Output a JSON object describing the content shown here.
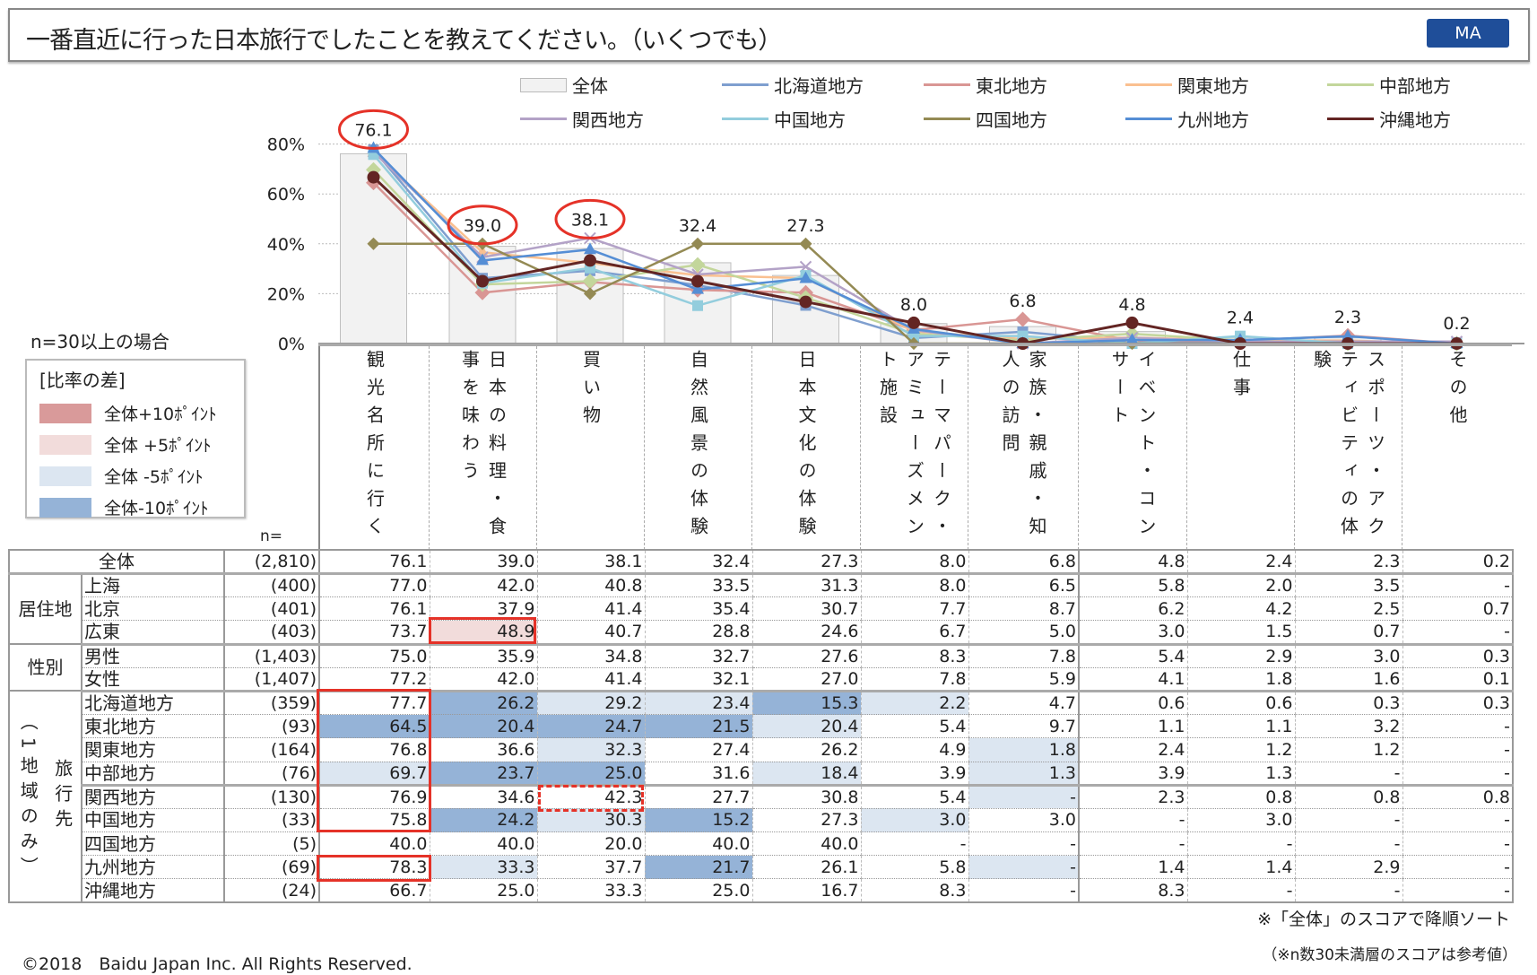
{
  "header": {
    "title": "一番直近に行った日本旅行でしたことを教えてください。（いくつでも）",
    "badge": "MA"
  },
  "condition": "n=30以上の場合",
  "diff_legend": {
    "title": "[比率の差]",
    "items": [
      {
        "label": "全体+10ﾎﾟｲﾝﾄ",
        "color": "#d99a9a"
      },
      {
        "label": "全体 +5ﾎﾟｲﾝﾄ",
        "color": "#f2dcdb"
      },
      {
        "label": "全体 -5ﾎﾟｲﾝﾄ",
        "color": "#dce6f1"
      },
      {
        "label": "全体-10ﾎﾟｲﾝﾄ",
        "color": "#95b3d7"
      }
    ]
  },
  "n_label": "n=",
  "chart_data": {
    "type": "bar+line",
    "categories": [
      "観光名所に行く",
      "日本の料理・食事を味わう",
      "買い物",
      "自然風景の体験",
      "日本文化の体験",
      "テーマパーク・アミューズメント施設",
      "家族・親戚・知人の訪問",
      "イベント・コンサート",
      "仕事",
      "スポーツ・アクティビティの体験",
      "その他"
    ],
    "yticks": [
      "0%",
      "20%",
      "40%",
      "60%",
      "80%"
    ],
    "ylim": [
      0,
      80
    ],
    "bar_series": {
      "name": "全体",
      "color": "#f2f2f2",
      "values": [
        76.1,
        39.0,
        38.1,
        32.4,
        27.3,
        8.0,
        6.8,
        4.8,
        2.4,
        2.3,
        0.2
      ],
      "labels": [
        "76.1",
        "39.0",
        "38.1",
        "32.4",
        "27.3",
        "8.0",
        "6.8",
        "4.8",
        "2.4",
        "2.3",
        "0.2"
      ]
    },
    "highlighted": [
      "76.1",
      "39.0",
      "38.1"
    ],
    "series": [
      {
        "name": "北海道地方",
        "color": "#7f9fcf",
        "marker": "square",
        "values": [
          77.7,
          26.2,
          29.2,
          23.4,
          15.3,
          2.2,
          4.7,
          0.6,
          0.6,
          0.3,
          0.3
        ]
      },
      {
        "name": "東北地方",
        "color": "#d99694",
        "marker": "dot",
        "values": [
          64.5,
          20.4,
          24.7,
          21.5,
          20.4,
          5.4,
          9.7,
          1.1,
          1.1,
          3.2,
          0
        ]
      },
      {
        "name": "関東地方",
        "color": "#fac090",
        "marker": "triangle",
        "values": [
          76.8,
          36.6,
          32.3,
          27.4,
          26.2,
          4.9,
          1.8,
          2.4,
          1.2,
          1.2,
          0
        ]
      },
      {
        "name": "中部地方",
        "color": "#c3d69b",
        "marker": "dot",
        "values": [
          69.7,
          23.7,
          25.0,
          31.6,
          18.4,
          3.9,
          1.3,
          3.9,
          1.3,
          0,
          0
        ]
      },
      {
        "name": "関西地方",
        "color": "#b3a2c7",
        "marker": "x",
        "values": [
          76.9,
          34.6,
          42.3,
          27.7,
          30.8,
          5.4,
          0,
          2.3,
          0.8,
          0.8,
          0.8
        ]
      },
      {
        "name": "中国地方",
        "color": "#93cddd",
        "marker": "square",
        "values": [
          75.8,
          24.2,
          30.3,
          15.2,
          27.3,
          3.0,
          3.0,
          0,
          3.0,
          0,
          0
        ]
      },
      {
        "name": "四国地方",
        "color": "#948a54",
        "marker": "diamond",
        "values": [
          40.0,
          40.0,
          20.0,
          40.0,
          40.0,
          0,
          0,
          0,
          0,
          0,
          0
        ]
      },
      {
        "name": "九州地方",
        "color": "#558ed5",
        "marker": "triangle",
        "values": [
          78.3,
          33.3,
          37.7,
          21.7,
          26.1,
          5.8,
          0,
          1.4,
          1.4,
          2.9,
          0
        ]
      },
      {
        "name": "沖縄地方",
        "color": "#632523",
        "marker": "circle",
        "values": [
          66.7,
          25.0,
          33.3,
          25.0,
          16.7,
          8.3,
          0,
          8.3,
          0,
          0,
          0
        ]
      }
    ]
  },
  "table": {
    "groups": {
      "residence": "居住地",
      "gender": "性別",
      "dest_a": "旅行先",
      "dest_b": "（1地域のみ）"
    },
    "rows": [
      {
        "name": "全体",
        "n": "(2,810)",
        "v": [
          "76.1",
          "39.0",
          "38.1",
          "32.4",
          "27.3",
          "8.0",
          "6.8",
          "4.8",
          "2.4",
          "2.3",
          "0.2"
        ],
        "s": [
          0,
          0,
          0,
          0,
          0,
          0,
          0,
          0,
          0,
          0,
          0
        ]
      },
      {
        "name": "上海",
        "n": "(400)",
        "v": [
          "77.0",
          "42.0",
          "40.8",
          "33.5",
          "31.3",
          "8.0",
          "6.5",
          "5.8",
          "2.0",
          "3.5",
          "-"
        ],
        "s": [
          0,
          0,
          0,
          0,
          0,
          0,
          0,
          0,
          0,
          0,
          0
        ]
      },
      {
        "name": "北京",
        "n": "(401)",
        "v": [
          "76.1",
          "37.9",
          "41.4",
          "35.4",
          "30.7",
          "7.7",
          "8.7",
          "6.2",
          "4.2",
          "2.5",
          "0.7"
        ],
        "s": [
          0,
          0,
          0,
          0,
          0,
          0,
          0,
          0,
          0,
          0,
          0
        ]
      },
      {
        "name": "広東",
        "n": "(403)",
        "v": [
          "73.7",
          "48.9",
          "40.7",
          "28.8",
          "24.6",
          "6.7",
          "5.0",
          "3.0",
          "1.5",
          "0.7",
          "-"
        ],
        "s": [
          0,
          2,
          0,
          0,
          0,
          0,
          0,
          0,
          0,
          0,
          0
        ]
      },
      {
        "name": "男性",
        "n": "(1,403)",
        "v": [
          "75.0",
          "35.9",
          "34.8",
          "32.7",
          "27.6",
          "8.3",
          "7.8",
          "5.4",
          "2.9",
          "3.0",
          "0.3"
        ],
        "s": [
          0,
          0,
          0,
          0,
          0,
          0,
          0,
          0,
          0,
          0,
          0
        ]
      },
      {
        "name": "女性",
        "n": "(1,407)",
        "v": [
          "77.2",
          "42.0",
          "41.4",
          "32.1",
          "27.0",
          "7.8",
          "5.9",
          "4.1",
          "1.8",
          "1.6",
          "0.1"
        ],
        "s": [
          0,
          0,
          0,
          0,
          0,
          0,
          0,
          0,
          0,
          0,
          0
        ]
      },
      {
        "name": "北海道地方",
        "n": "(359)",
        "v": [
          "77.7",
          "26.2",
          "29.2",
          "23.4",
          "15.3",
          "2.2",
          "4.7",
          "0.6",
          "0.6",
          "0.3",
          "0.3"
        ],
        "s": [
          0,
          4,
          3,
          3,
          4,
          3,
          0,
          0,
          0,
          0,
          0
        ]
      },
      {
        "name": "東北地方",
        "n": "(93)",
        "v": [
          "64.5",
          "20.4",
          "24.7",
          "21.5",
          "20.4",
          "5.4",
          "9.7",
          "1.1",
          "1.1",
          "3.2",
          "-"
        ],
        "s": [
          4,
          4,
          4,
          4,
          3,
          0,
          0,
          0,
          0,
          0,
          0
        ]
      },
      {
        "name": "関東地方",
        "n": "(164)",
        "v": [
          "76.8",
          "36.6",
          "32.3",
          "27.4",
          "26.2",
          "4.9",
          "1.8",
          "2.4",
          "1.2",
          "1.2",
          "-"
        ],
        "s": [
          0,
          0,
          3,
          0,
          0,
          0,
          3,
          0,
          0,
          0,
          0
        ]
      },
      {
        "name": "中部地方",
        "n": "(76)",
        "v": [
          "69.7",
          "23.7",
          "25.0",
          "31.6",
          "18.4",
          "3.9",
          "1.3",
          "3.9",
          "1.3",
          "-",
          "-"
        ],
        "s": [
          3,
          4,
          4,
          0,
          3,
          0,
          3,
          0,
          0,
          0,
          0
        ]
      },
      {
        "name": "関西地方",
        "n": "(130)",
        "v": [
          "76.9",
          "34.6",
          "42.3",
          "27.7",
          "30.8",
          "5.4",
          "-",
          "2.3",
          "0.8",
          "0.8",
          "0.8"
        ],
        "s": [
          0,
          0,
          0,
          0,
          0,
          0,
          3,
          0,
          0,
          0,
          0
        ]
      },
      {
        "name": "中国地方",
        "n": "(33)",
        "v": [
          "75.8",
          "24.2",
          "30.3",
          "15.2",
          "27.3",
          "3.0",
          "3.0",
          "-",
          "3.0",
          "-",
          "-"
        ],
        "s": [
          0,
          4,
          3,
          4,
          0,
          3,
          0,
          0,
          0,
          0,
          0
        ]
      },
      {
        "name": "四国地方",
        "n": "(5)",
        "v": [
          "40.0",
          "40.0",
          "20.0",
          "40.0",
          "40.0",
          "-",
          "-",
          "-",
          "-",
          "-",
          "-"
        ],
        "s": [
          0,
          0,
          0,
          0,
          0,
          0,
          0,
          0,
          0,
          0,
          0
        ]
      },
      {
        "name": "九州地方",
        "n": "(69)",
        "v": [
          "78.3",
          "33.3",
          "37.7",
          "21.7",
          "26.1",
          "5.8",
          "-",
          "1.4",
          "1.4",
          "2.9",
          "-"
        ],
        "s": [
          0,
          3,
          0,
          4,
          0,
          0,
          3,
          0,
          0,
          0,
          0
        ]
      },
      {
        "name": "沖縄地方",
        "n": "(24)",
        "v": [
          "66.7",
          "25.0",
          "33.3",
          "25.0",
          "16.7",
          "8.3",
          "-",
          "8.3",
          "-",
          "-",
          "-"
        ],
        "s": [
          0,
          0,
          0,
          0,
          0,
          0,
          0,
          0,
          0,
          0,
          0
        ]
      }
    ]
  },
  "notes": {
    "sort": "※「全体」のスコアで降順ソート",
    "ref": "（※n数30未満層のスコアは参考値）"
  },
  "copyright": "©2018　Baidu Japan Inc. All Rights Reserved."
}
